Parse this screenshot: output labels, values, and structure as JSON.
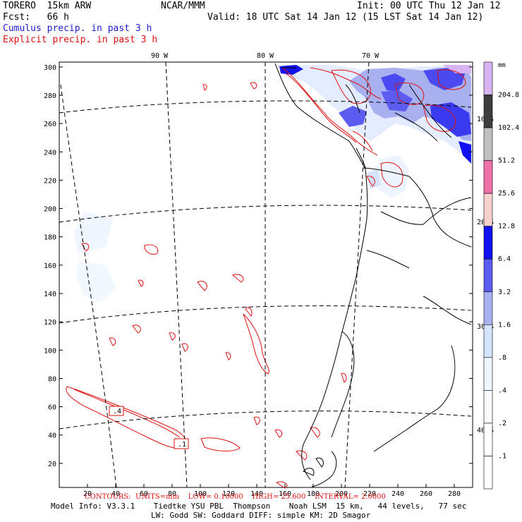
{
  "header": {
    "model": "TORERO  15km ARW",
    "center": "NCAR/MMM",
    "init": "Init: 00 UTC Thu 12 Jan 12",
    "fcst": "Fcst:   66 h",
    "valid": "Valid: 18 UTC Sat 14 Jan 12 (15 LST Sat 14 Jan 12)",
    "legend_cumulus": "Cumulus precip. in past 3 h",
    "legend_explicit": "Explicit precip. in past 3 h"
  },
  "colors": {
    "cumulus": "#1c1cd0",
    "explicit": "#e01010",
    "coast": "#000000"
  },
  "axes": {
    "y_ticks": [
      "300",
      "280",
      "260",
      "240",
      "220",
      "200",
      "180",
      "160",
      "140",
      "120",
      "100",
      "80",
      "60",
      "40",
      "20"
    ],
    "x_ticks": [
      "20",
      "40",
      "60",
      "80",
      "100",
      "120",
      "140",
      "160",
      "180",
      "200",
      "220",
      "240",
      "260",
      "280"
    ],
    "lon_labels": [
      "90 W",
      "80 W",
      "70 W"
    ],
    "lat_labels": [
      "10 S",
      "20 S",
      "30 S",
      "40 S"
    ]
  },
  "colorbar": {
    "unit": "mm",
    "levels": [
      {
        "label": "204.8",
        "color": "#d8b4f4"
      },
      {
        "label": "102.4",
        "color": "#3c3c3c"
      },
      {
        "label": "51.2",
        "color": "#c0c0c0"
      },
      {
        "label": "25.6",
        "color": "#f070a8"
      },
      {
        "label": "12.8",
        "color": "#f8d0d0"
      },
      {
        "label": "6.4",
        "color": "#1010f0"
      },
      {
        "label": "3.2",
        "color": "#5c5cf0"
      },
      {
        "label": "1.6",
        "color": "#a8b0f0"
      },
      {
        "label": ".8",
        "color": "#d4e4ff"
      },
      {
        "label": ".4",
        "color": "#eef6ff"
      },
      {
        "label": ".2",
        "color": "#f8fcff"
      },
      {
        "label": ".1",
        "color": "#ffffff"
      },
      {
        "label": "",
        "color": "#ffffff"
      }
    ]
  },
  "footer": {
    "contour_info": "CONTOURS:  UNITS=mm    LOW= 0.10000    HIGH= 25.600    INTERVAL= 2.0000",
    "model_info": "Model Info: V3.3.1    Tiedtke YSU PBL  Thompson    Noah LSM  15 km,   44 levels,   77 sec",
    "physics_info": "LW: Godd SW: Goddard DIFF: simple KM: 2D Smagor"
  },
  "contour_labels": [
    ".4",
    ".1"
  ]
}
